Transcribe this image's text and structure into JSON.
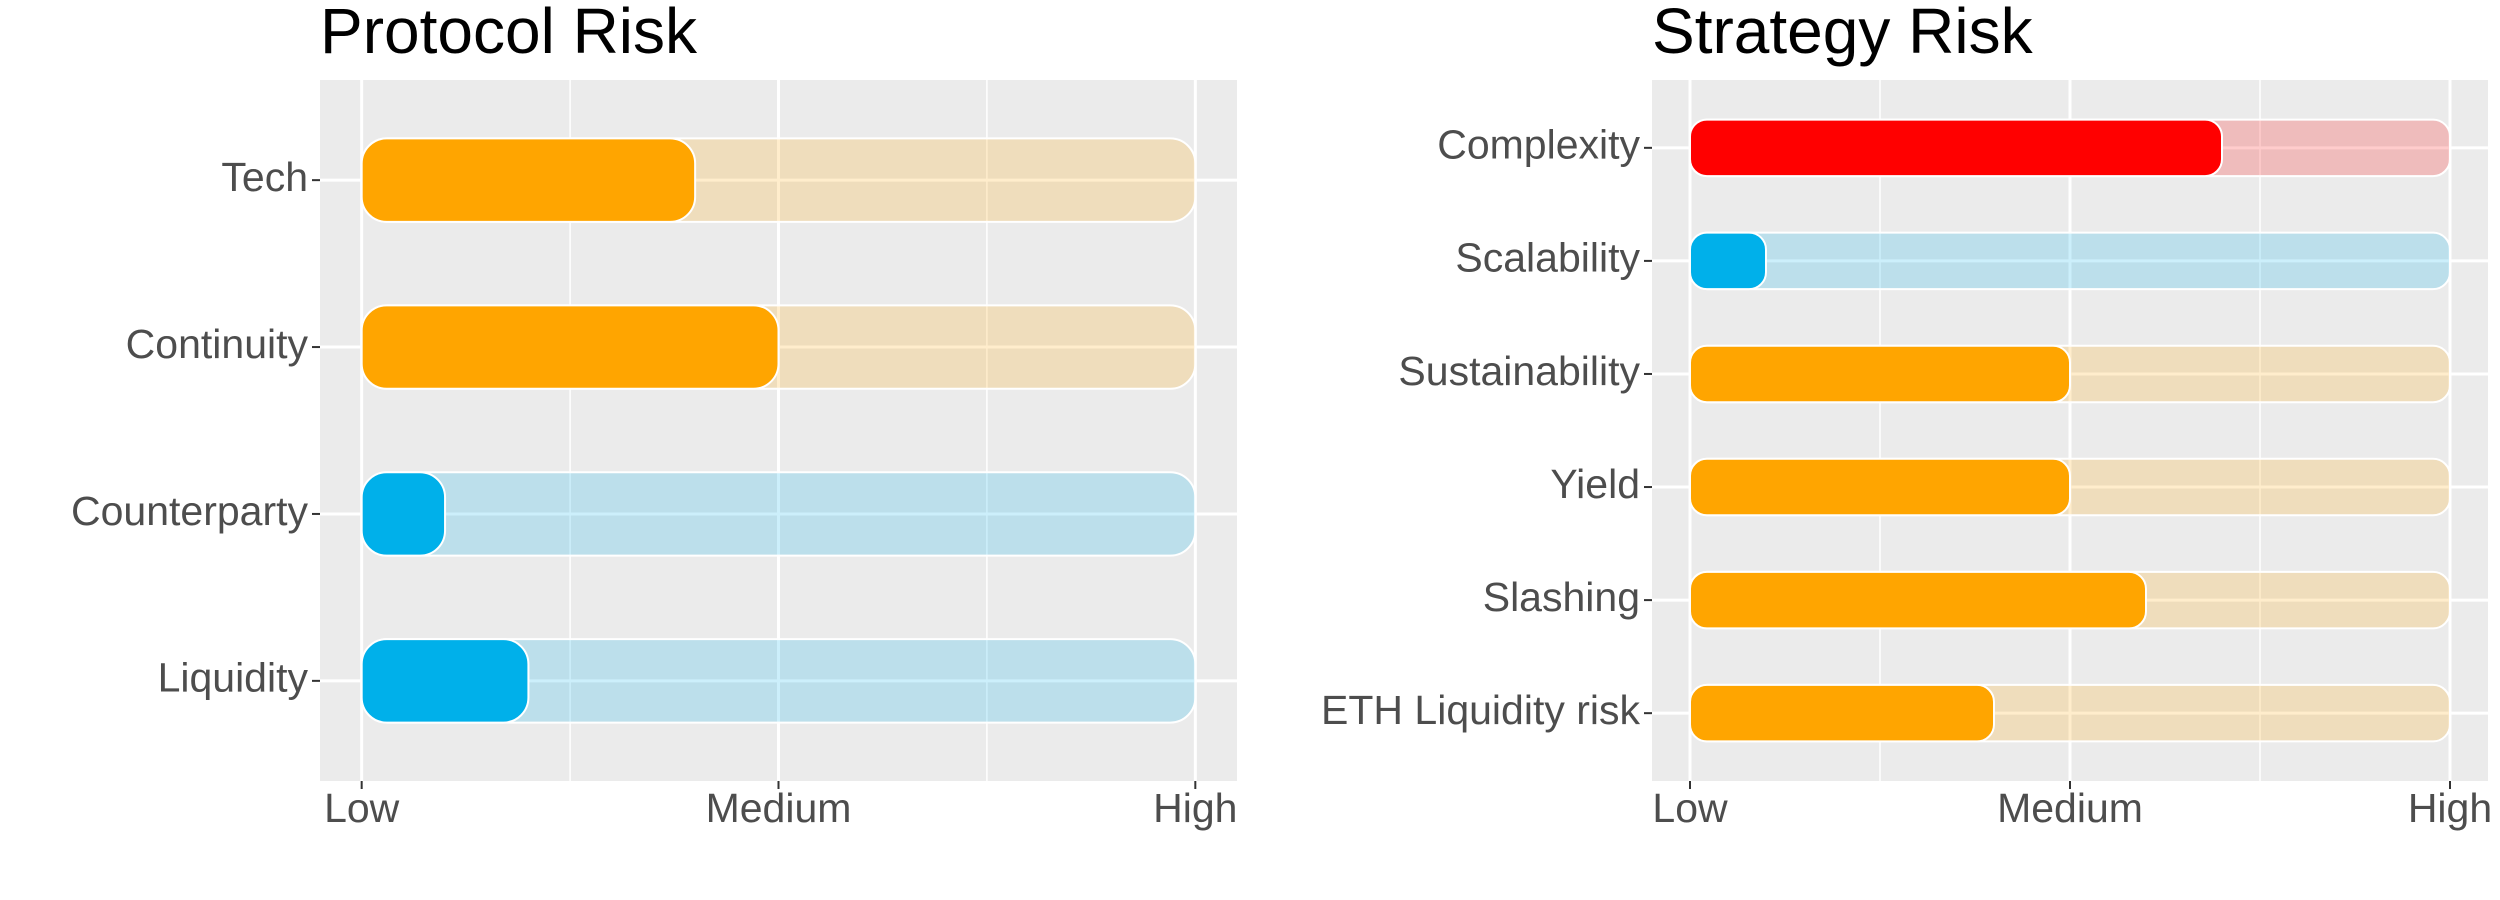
{
  "chart_data": [
    {
      "type": "bar",
      "orientation": "horizontal",
      "title": "Protocol Risk",
      "categories": [
        "Tech",
        "Continuity",
        "Counterparty",
        "Liquidity"
      ],
      "values": [
        0.4,
        0.5,
        0.1,
        0.2
      ],
      "colors": [
        "#FFA500",
        "#FFA500",
        "#00B0EA",
        "#00B0EA"
      ],
      "xlim": [
        -0.05,
        1.05
      ],
      "xticks": [
        {
          "value": 0,
          "label": "Low"
        },
        {
          "value": 0.5,
          "label": "Medium"
        },
        {
          "value": 1,
          "label": "High"
        }
      ],
      "minor_xticks": [
        0.25,
        0.75
      ],
      "grid": true
    },
    {
      "type": "bar",
      "orientation": "horizontal",
      "title": "Strategy Risk",
      "categories": [
        "Complexity",
        "Scalability",
        "Sustainability",
        "Yield",
        "Slashing",
        "ETH Liquidity risk"
      ],
      "values": [
        0.7,
        0.1,
        0.5,
        0.5,
        0.6,
        0.4
      ],
      "colors": [
        "#FF0000",
        "#00B0EA",
        "#FFA500",
        "#FFA500",
        "#FFA500",
        "#FFA500"
      ],
      "xlim": [
        -0.05,
        1.05
      ],
      "xticks": [
        {
          "value": 0,
          "label": "Low"
        },
        {
          "value": 0.5,
          "label": "Medium"
        },
        {
          "value": 1,
          "label": "High"
        }
      ],
      "minor_xticks": [
        0.25,
        0.75
      ],
      "grid": true
    }
  ]
}
